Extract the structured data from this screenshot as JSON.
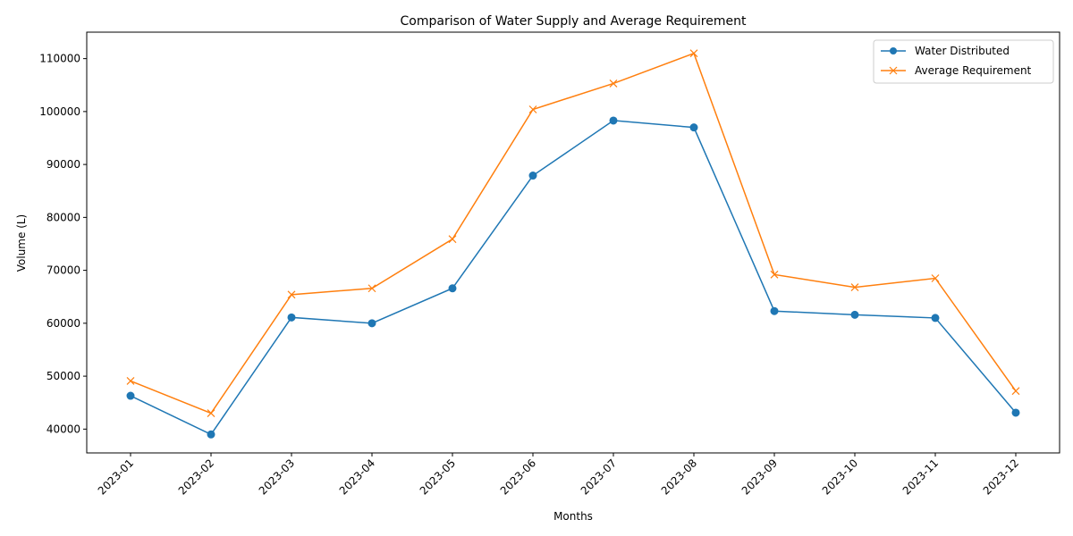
{
  "chart_data": {
    "type": "line",
    "title": "Comparison of Water Supply and Average Requirement",
    "xlabel": "Months",
    "ylabel": "Volume (L)",
    "categories": [
      "2023-01",
      "2023-02",
      "2023-03",
      "2023-04",
      "2023-05",
      "2023-06",
      "2023-07",
      "2023-08",
      "2023-09",
      "2023-10",
      "2023-11",
      "2023-12"
    ],
    "ylim": [
      35500,
      115000
    ],
    "yticks": [
      40000,
      50000,
      60000,
      70000,
      80000,
      90000,
      100000,
      110000
    ],
    "grid": false,
    "legend_position": "top-right",
    "series": [
      {
        "name": "Water Distributed",
        "color": "#1f77b4",
        "marker": "circle",
        "values": [
          46300,
          39000,
          61100,
          60000,
          66600,
          87900,
          98300,
          97000,
          62300,
          61600,
          61000,
          43100
        ]
      },
      {
        "name": "Average Requirement",
        "color": "#ff7f0e",
        "marker": "x",
        "values": [
          49100,
          43000,
          65400,
          66600,
          75900,
          100400,
          105300,
          111000,
          69200,
          66800,
          68500,
          47200
        ]
      }
    ]
  }
}
